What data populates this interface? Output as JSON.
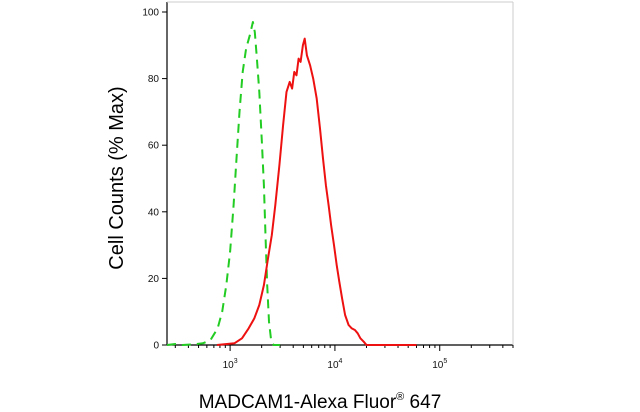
{
  "chart_data": {
    "type": "line",
    "title": "",
    "xlabel": "MADCAM1-Alexa Fluor",
    "xlabel_sup": "®",
    "xlabel_suffix": " 647",
    "ylabel": "Cell Counts (% Max)",
    "x_scale": "log",
    "xlim": [
      250,
      500000
    ],
    "ylim": [
      0,
      100
    ],
    "grid": false,
    "legend": "none",
    "y_ticks": [
      {
        "value": 0,
        "label": "0"
      },
      {
        "value": 20,
        "label": "20"
      },
      {
        "value": 40,
        "label": "40"
      },
      {
        "value": 60,
        "label": "60"
      },
      {
        "value": 80,
        "label": "80"
      },
      {
        "value": 100,
        "label": "100"
      }
    ],
    "x_ticks": [
      {
        "value": 1000,
        "base": "10",
        "exp": "3"
      },
      {
        "value": 10000,
        "base": "10",
        "exp": "4"
      },
      {
        "value": 100000,
        "base": "10",
        "exp": "5"
      }
    ],
    "series": [
      {
        "color": "#22cc22",
        "dash": "dashed",
        "points": [
          [
            250,
            0
          ],
          [
            300,
            0.3
          ],
          [
            350,
            0
          ],
          [
            450,
            0.2
          ],
          [
            550,
            0.5
          ],
          [
            650,
            1.5
          ],
          [
            760,
            5
          ],
          [
            840,
            10
          ],
          [
            920,
            18
          ],
          [
            1000,
            28
          ],
          [
            1080,
            42
          ],
          [
            1150,
            56
          ],
          [
            1230,
            70
          ],
          [
            1320,
            82
          ],
          [
            1420,
            89
          ],
          [
            1540,
            93
          ],
          [
            1650,
            97
          ],
          [
            1720,
            94
          ],
          [
            1800,
            86
          ],
          [
            1900,
            76
          ],
          [
            2000,
            62
          ],
          [
            2100,
            48
          ],
          [
            2180,
            32
          ],
          [
            2260,
            18
          ],
          [
            2350,
            7
          ],
          [
            2460,
            1.5
          ],
          [
            2600,
            0
          ],
          [
            3000,
            0
          ]
        ]
      },
      {
        "color": "#ee1111",
        "dash": "solid",
        "points": [
          [
            750,
            0
          ],
          [
            1100,
            0.5
          ],
          [
            1300,
            2
          ],
          [
            1500,
            5
          ],
          [
            1700,
            8
          ],
          [
            1900,
            12
          ],
          [
            2100,
            18
          ],
          [
            2300,
            26
          ],
          [
            2500,
            33
          ],
          [
            2700,
            42
          ],
          [
            2950,
            54
          ],
          [
            3200,
            66
          ],
          [
            3450,
            76
          ],
          [
            3700,
            79
          ],
          [
            3900,
            77
          ],
          [
            4100,
            82
          ],
          [
            4300,
            81
          ],
          [
            4500,
            86
          ],
          [
            4700,
            85
          ],
          [
            4950,
            90
          ],
          [
            5150,
            92
          ],
          [
            5400,
            87
          ],
          [
            5800,
            84
          ],
          [
            6200,
            80
          ],
          [
            6700,
            74
          ],
          [
            7200,
            65
          ],
          [
            7700,
            56
          ],
          [
            8200,
            48
          ],
          [
            8700,
            42
          ],
          [
            9200,
            36
          ],
          [
            9800,
            30
          ],
          [
            10400,
            24
          ],
          [
            11000,
            19
          ],
          [
            11700,
            14
          ],
          [
            12500,
            9
          ],
          [
            13500,
            6
          ],
          [
            14500,
            5
          ],
          [
            15500,
            4.5
          ],
          [
            16500,
            3.5
          ],
          [
            17500,
            2
          ],
          [
            18800,
            1
          ],
          [
            20000,
            0
          ],
          [
            24000,
            0
          ],
          [
            35000,
            0
          ],
          [
            60000,
            0
          ]
        ]
      }
    ]
  }
}
